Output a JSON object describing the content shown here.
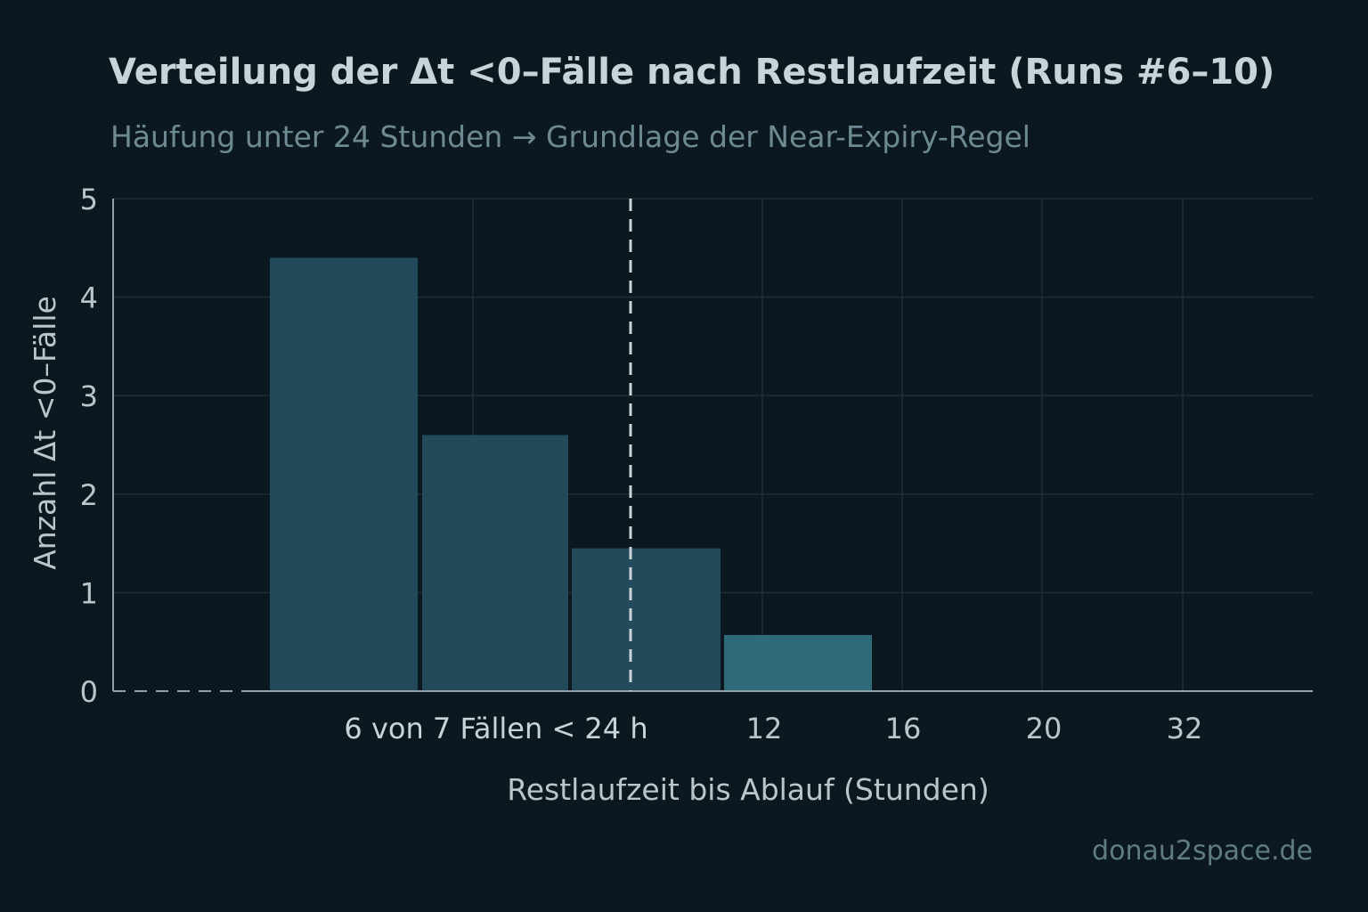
{
  "header": {
    "title": "Verteilung der Δt <0–Fälle nach Restlaufzeit (Runs #6–10)",
    "subtitle": "Häufung unter 24 Stunden → Grundlage der Near-Expiry-Regel"
  },
  "watermark": "donau2space.de",
  "colors": {
    "background": "#0c1820",
    "bar": "#224a5a",
    "bar_highlight": "#2e6a78",
    "grid": "#1e2d36",
    "threshold_line": "#c9d4d8"
  },
  "chart_data": {
    "type": "bar",
    "title": "Verteilung der Δt <0–Fälle nach Restlaufzeit (Runs #6–10)",
    "subtitle": "Häufung unter 24 Stunden → Grundlage der Near-Expiry-Regel",
    "xlabel": "Restlaufzeit bis Ablauf (Stunden)",
    "ylabel": "Anzahl Δt <0–Fälle",
    "ylim": [
      0,
      5
    ],
    "yticks": [
      0,
      1,
      2,
      3,
      4,
      5
    ],
    "xtick_labels": [
      "12",
      "16",
      "20",
      "32"
    ],
    "values": [
      4.4,
      2.6,
      1.45,
      0.57
    ],
    "highlight_index": 3,
    "threshold_label": "24 h",
    "annotation": "6 von 7 Fällen < 24 h",
    "grid": true
  }
}
